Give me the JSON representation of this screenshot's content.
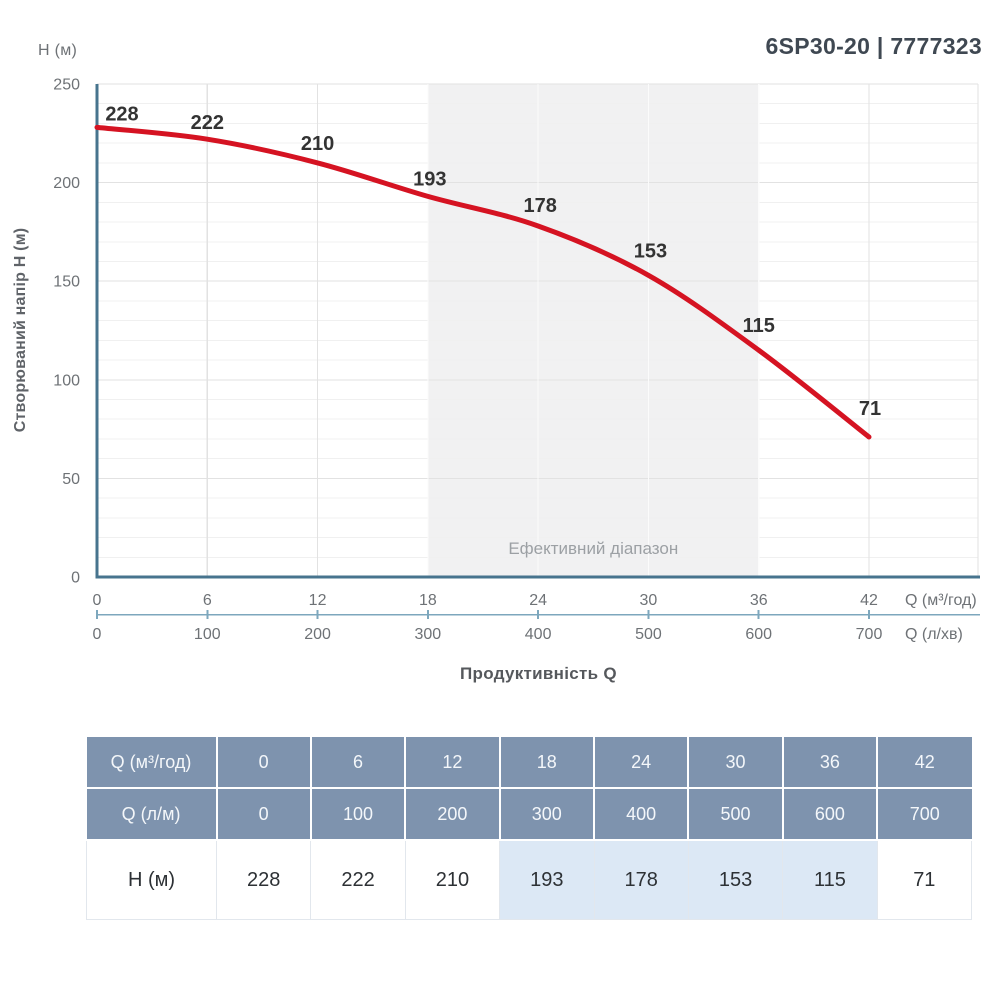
{
  "header": {
    "model_title": "6SP30-20 | 7777323"
  },
  "chart": {
    "y_axis_top_label": "H (м)",
    "y_axis_title": "Створюваний напір H (м)",
    "x_axis_title": "Продуктивність Q",
    "x_unit_primary": "Q (м³/год)",
    "x_unit_secondary": "Q (л/хв)",
    "effective_range_label": "Ефективний діапазон"
  },
  "chart_data": {
    "type": "line",
    "title": "6SP30-20 | 7777323",
    "xlabel": "Продуктивність Q",
    "ylabel": "Створюваний напір H (м)",
    "x_m3h": [
      0,
      6,
      12,
      18,
      24,
      30,
      36,
      42
    ],
    "x_lmin": [
      0,
      100,
      200,
      300,
      400,
      500,
      600,
      700
    ],
    "head_m": [
      228,
      222,
      210,
      193,
      178,
      153,
      115,
      71
    ],
    "point_labels": [
      "228",
      "222",
      "210",
      "193",
      "178",
      "153",
      "115",
      "71"
    ],
    "y_ticks": [
      0,
      50,
      100,
      150,
      200,
      250
    ],
    "x_ticks_m3h": [
      "0",
      "6",
      "12",
      "18",
      "24",
      "30",
      "36",
      "42"
    ],
    "x_ticks_lmin": [
      "0",
      "100",
      "200",
      "300",
      "400",
      "500",
      "600",
      "700"
    ],
    "ylim": [
      0,
      250
    ],
    "xlim": [
      0,
      48
    ],
    "minor_grid_step": 10,
    "grid": true,
    "legend": false,
    "effective_range_x": [
      18,
      36
    ]
  },
  "table": {
    "rows": [
      {
        "label": "Q (м³/год)",
        "values": [
          "0",
          "6",
          "12",
          "18",
          "24",
          "30",
          "36",
          "42"
        ],
        "type": "header",
        "highlight_cols": []
      },
      {
        "label": "Q (л/м)",
        "values": [
          "0",
          "100",
          "200",
          "300",
          "400",
          "500",
          "600",
          "700"
        ],
        "type": "header",
        "highlight_cols": []
      },
      {
        "label": "H (м)",
        "values": [
          "228",
          "222",
          "210",
          "193",
          "178",
          "153",
          "115",
          "71"
        ],
        "type": "body",
        "highlight_cols": [
          3,
          4,
          5,
          6
        ]
      }
    ]
  },
  "colors": {
    "curve": "#d51322",
    "axis": "#47748e",
    "axis_secondary": "#7da7bd",
    "grid_major": "#e2e2e2",
    "grid_minor": "#f0f0f0",
    "band_bg": "#f1f1f2",
    "band_gridline": "#fbfbfb",
    "tick_text": "#6e7276",
    "point_label_text": "#333333",
    "band_label_text": "#9ca0a4",
    "table_header_bg": "#7e93ae",
    "table_highlight_bg": "#dce8f5"
  }
}
